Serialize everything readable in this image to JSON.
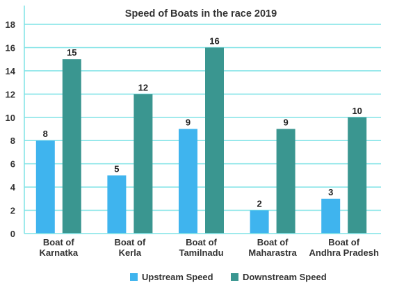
{
  "chart_data": {
    "type": "bar",
    "title": "Speed of Boats in the race 2019",
    "categories": [
      [
        "Boat of",
        "Karnatka"
      ],
      [
        "Boat of",
        "Kerla"
      ],
      [
        "Boat of",
        "Tamilnadu"
      ],
      [
        "Boat of",
        "Maharastra"
      ],
      [
        "Boat of",
        "Andhra Pradesh"
      ]
    ],
    "series": [
      {
        "name": "Upstream Speed",
        "values": [
          8,
          5,
          9,
          2,
          3
        ],
        "color": "#3fb4ee"
      },
      {
        "name": "Downstream Speed",
        "values": [
          15,
          12,
          16,
          9,
          10
        ],
        "color": "#3a9690"
      }
    ],
    "ylim": [
      0,
      18
    ],
    "yticks": [
      0,
      2,
      4,
      6,
      8,
      10,
      12,
      14,
      16,
      18
    ],
    "grid": true,
    "grid_color": "#7fe3e6",
    "legend_position": "bottom",
    "xlabel": "",
    "ylabel": ""
  }
}
